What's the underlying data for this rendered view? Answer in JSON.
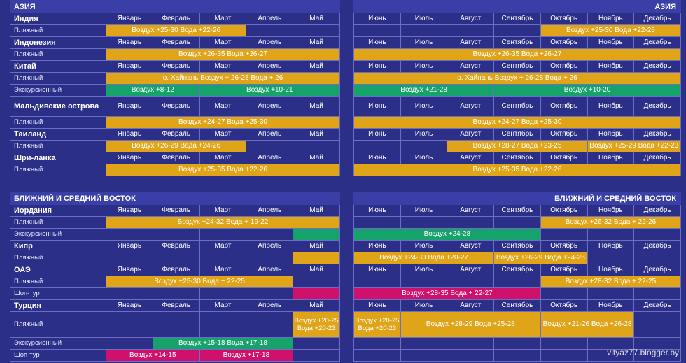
{
  "region_asia": "АЗИЯ",
  "region_middle_east": "БЛИЖНИЙ И СРЕДНИЙ ВОСТОК",
  "months_left": [
    "Январь",
    "Февраль",
    "Март",
    "Апрель",
    "Май"
  ],
  "months_right": [
    "Июнь",
    "Июль",
    "Август",
    "Сентябрь",
    "Октябрь",
    "Ноябрь",
    "Декабрь"
  ],
  "types": {
    "beach": "Пляжный",
    "excursion": "Экскурсионный",
    "shop": "Шоп-тур"
  },
  "asia": {
    "india": {
      "name": "Индия",
      "beach_l": "Воздух +25-30 Вода +22-26",
      "beach_r": "Воздух +25-30 Вода +22-26"
    },
    "indonesia": {
      "name": "Индонезия",
      "beach_l": "Воздух +26-35 Вода +26-27",
      "beach_r": "Воздух +26-35 Вода +26-27"
    },
    "china": {
      "name": "Китай",
      "beach_l": "о. Хайнань Воздух + 26-28 Вода + 26",
      "beach_r": "о. Хайнань Воздух + 26-28 Вода + 26",
      "exc_l1": "Воздух +8-12",
      "exc_l2": "Воздух +10-21",
      "exc_r1": "Воздух +21-28",
      "exc_r2": "Воздух +10-20"
    },
    "maldives": {
      "name": "Мальдивские острова",
      "beach_l": "Воздух +24-27 Вода +25-30",
      "beach_r": "Воздух +24-27 Вода +25-30"
    },
    "thailand": {
      "name": "Таиланд",
      "beach_l": "Воздух +26-29 Вода +24-26",
      "beach_r1": "Воздух +28-27 Вода +23-25",
      "beach_r2": "Воздух +25-29 Вода +22-23"
    },
    "srilanka": {
      "name": "Шри-ланка",
      "beach_l": "Воздух +25-35 Вода +22-26",
      "beach_r": "Воздух +25-35 Вода +22-26"
    }
  },
  "mideast": {
    "jordan": {
      "name": "Иордания",
      "beach_l": "Воздух +24-32 Вода + 19-22",
      "beach_r": "Воздух +26-32 Вода + 22-26",
      "exc_r": "Воздух +24-28"
    },
    "cyprus": {
      "name": "Кипр",
      "beach_r1": "Воздух +24-33 Вода +20-27",
      "beach_r2": "Воздух +26-29 Вода +24-26"
    },
    "uae": {
      "name": "ОАЭ",
      "beach_l": "Воздух +25-30 Вода + 22-25",
      "beach_r": "Воздух +28-32 Вода + 22-25",
      "shop_r": "Воздух +28-35 Вода + 22-27"
    },
    "turkey": {
      "name": "Турция",
      "beach_may": "Воздух +20-25 Вода +20-23",
      "beach_r1": "Воздух +20-25 Вода +20-23",
      "beach_r2": "Воздух +28-29 Вода +25-28",
      "beach_r3": "Воздух +21-26 Вода +26-28",
      "exc_l": "Воздух +15-18 Вода +17-18",
      "shop_l1": "Воздух +14-15",
      "shop_l2": "Воздух +17-18"
    }
  },
  "watermark": "vityaz77.blogger.by",
  "colors": {
    "background": "#2c2f87",
    "orange": "#e0a418",
    "green": "#15a36b",
    "magenta": "#d0116b"
  }
}
